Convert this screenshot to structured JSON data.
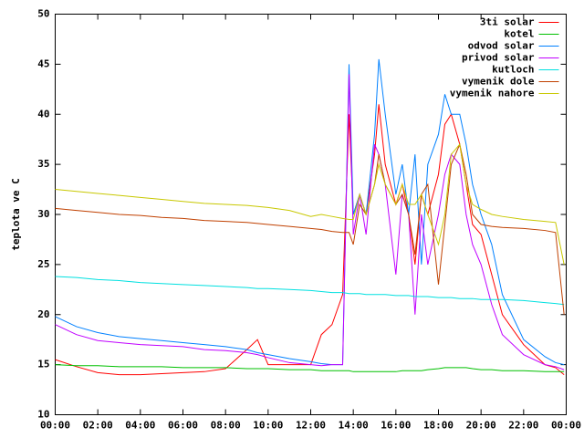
{
  "chart_data": {
    "type": "line",
    "ylabel": "teplota ve C",
    "x": [
      0,
      1,
      2,
      3,
      4,
      5,
      6,
      7,
      8,
      9,
      9.5,
      10,
      11,
      12,
      12.5,
      13,
      13.5,
      13.8,
      14,
      14.3,
      14.6,
      15,
      15.2,
      15.5,
      16,
      16.3,
      16.6,
      16.9,
      17.2,
      17.5,
      18,
      18.3,
      18.6,
      19,
      19.3,
      19.6,
      20,
      20.5,
      21,
      22,
      23,
      23.5,
      23.9
    ],
    "xlim": [
      0,
      24
    ],
    "xticks": [
      {
        "value": 0,
        "label": "00:00"
      },
      {
        "value": 2,
        "label": "02:00"
      },
      {
        "value": 4,
        "label": "04:00"
      },
      {
        "value": 6,
        "label": "06:00"
      },
      {
        "value": 8,
        "label": "08:00"
      },
      {
        "value": 10,
        "label": "10:00"
      },
      {
        "value": 12,
        "label": "12:00"
      },
      {
        "value": 14,
        "label": "14:00"
      },
      {
        "value": 16,
        "label": "16:00"
      },
      {
        "value": 18,
        "label": "18:00"
      },
      {
        "value": 20,
        "label": "20:00"
      },
      {
        "value": 22,
        "label": "22:00"
      },
      {
        "value": 24,
        "label": "00:00"
      }
    ],
    "ylim": [
      10,
      50
    ],
    "yticks": [
      10,
      15,
      20,
      25,
      30,
      35,
      40,
      45,
      50
    ],
    "grid": false,
    "legend": "top-right",
    "series": [
      {
        "name": "3ti solar",
        "color": "#ff0000",
        "values": [
          15.5,
          14.8,
          14.2,
          14,
          14,
          14.1,
          14.2,
          14.3,
          14.6,
          16.5,
          17.5,
          15,
          15,
          15,
          18,
          19,
          22,
          40,
          30,
          32,
          30,
          36,
          41,
          35,
          31,
          33,
          30,
          25,
          32,
          30,
          34,
          39,
          40,
          37,
          33,
          29,
          28,
          24,
          20,
          17,
          15,
          14.7,
          14
        ]
      },
      {
        "name": "kotel",
        "color": "#00c000",
        "values": [
          15,
          14.9,
          14.9,
          14.8,
          14.8,
          14.8,
          14.7,
          14.7,
          14.7,
          14.6,
          14.6,
          14.6,
          14.5,
          14.5,
          14.4,
          14.4,
          14.4,
          14.4,
          14.3,
          14.3,
          14.3,
          14.3,
          14.3,
          14.3,
          14.3,
          14.4,
          14.4,
          14.4,
          14.4,
          14.5,
          14.6,
          14.7,
          14.7,
          14.7,
          14.7,
          14.6,
          14.5,
          14.5,
          14.4,
          14.4,
          14.3,
          14.3,
          14.3
        ]
      },
      {
        "name": "odvod solar",
        "color": "#0080ff",
        "values": [
          19.8,
          18.8,
          18.2,
          17.8,
          17.6,
          17.4,
          17.2,
          17,
          16.8,
          16.5,
          16.2,
          16,
          15.6,
          15.3,
          15.1,
          15,
          15,
          45,
          30,
          32,
          30,
          38,
          45.5,
          40,
          32,
          35,
          30,
          36,
          25,
          35,
          38,
          42,
          40,
          40,
          37,
          33,
          30,
          27,
          22,
          17.5,
          15.8,
          15.2,
          15
        ]
      },
      {
        "name": "privod solar",
        "color": "#c000ff",
        "values": [
          19,
          18,
          17.4,
          17.2,
          17,
          16.9,
          16.8,
          16.5,
          16.4,
          16.2,
          16,
          15.7,
          15.2,
          15,
          14.9,
          15,
          15,
          44,
          28,
          32,
          28,
          37,
          36,
          33,
          24,
          32,
          30,
          20,
          30,
          25,
          30,
          34,
          36,
          35,
          30,
          27,
          25,
          21,
          18,
          16,
          15,
          14.8,
          14.5
        ]
      },
      {
        "name": "kutloch",
        "color": "#00e0e0",
        "values": [
          23.8,
          23.7,
          23.5,
          23.4,
          23.2,
          23.1,
          23,
          22.9,
          22.8,
          22.7,
          22.6,
          22.6,
          22.5,
          22.4,
          22.3,
          22.2,
          22.2,
          22.1,
          22.1,
          22.1,
          22,
          22,
          22,
          22,
          21.9,
          21.9,
          21.9,
          21.8,
          21.8,
          21.8,
          21.7,
          21.7,
          21.7,
          21.6,
          21.6,
          21.6,
          21.5,
          21.5,
          21.5,
          21.4,
          21.2,
          21.1,
          21
        ]
      },
      {
        "name": "vymenik dole",
        "color": "#c04000",
        "values": [
          30.6,
          30.4,
          30.2,
          30,
          29.9,
          29.7,
          29.6,
          29.4,
          29.3,
          29.2,
          29.1,
          29,
          28.8,
          28.6,
          28.5,
          28.3,
          28.2,
          28.2,
          27,
          31,
          30,
          33,
          36,
          33,
          31,
          32,
          30,
          26,
          32,
          33,
          23,
          29,
          35,
          37,
          34,
          30,
          29,
          28.8,
          28.7,
          28.6,
          28.4,
          28.2,
          20
        ]
      },
      {
        "name": "vymenik nahore",
        "color": "#c8c800",
        "values": [
          32.5,
          32.3,
          32.1,
          31.9,
          31.7,
          31.5,
          31.3,
          31.1,
          31,
          30.9,
          30.8,
          30.7,
          30.4,
          29.8,
          30,
          29.8,
          29.6,
          29.5,
          29.5,
          32,
          30,
          33,
          35,
          33,
          31,
          33,
          31,
          31,
          32,
          30,
          27,
          30,
          36,
          37,
          33,
          31,
          30.5,
          30,
          29.8,
          29.5,
          29.3,
          29.2,
          25
        ]
      }
    ]
  }
}
